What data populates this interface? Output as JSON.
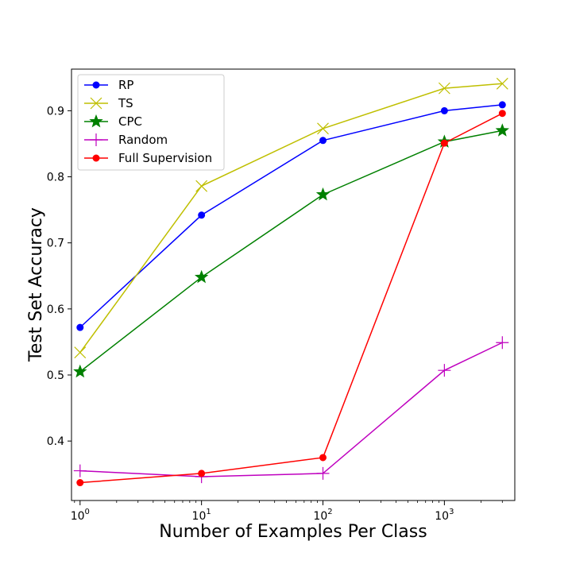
{
  "chart_data": {
    "type": "line",
    "title": "",
    "xlabel": "Number of Examples Per Class",
    "ylabel": "Test Set Accuracy",
    "xscale": "log",
    "xlim": [
      0.85,
      3800
    ],
    "ylim": [
      0.31,
      0.963
    ],
    "grid": false,
    "legend_position": "top-left",
    "x": [
      1,
      10,
      100,
      1000,
      3000
    ],
    "x_ticks": [
      1,
      10,
      100,
      1000
    ],
    "x_tick_labels": [
      {
        "base": "10",
        "exp": "0"
      },
      {
        "base": "10",
        "exp": "1"
      },
      {
        "base": "10",
        "exp": "2"
      },
      {
        "base": "10",
        "exp": "3"
      }
    ],
    "y_ticks": [
      0.4,
      0.5,
      0.6,
      0.7,
      0.8,
      0.9
    ],
    "y_tick_labels": [
      "0.4",
      "0.5",
      "0.6",
      "0.7",
      "0.8",
      "0.9"
    ],
    "series": [
      {
        "name": "RP",
        "color": "#0000ff",
        "marker": "circle",
        "values": [
          0.572,
          0.742,
          0.855,
          0.9,
          0.909
        ]
      },
      {
        "name": "TS",
        "color": "#bfbf00",
        "marker": "x",
        "values": [
          0.534,
          0.786,
          0.873,
          0.934,
          0.941
        ]
      },
      {
        "name": "CPC",
        "color": "#008000",
        "marker": "star",
        "values": [
          0.505,
          0.648,
          0.773,
          0.853,
          0.87
        ]
      },
      {
        "name": "Random",
        "color": "#bf00bf",
        "marker": "plus",
        "values": [
          0.355,
          0.346,
          0.351,
          0.507,
          0.549
        ]
      },
      {
        "name": "Full Supervision",
        "color": "#ff0000",
        "marker": "circle",
        "values": [
          0.337,
          0.351,
          0.375,
          0.851,
          0.896
        ]
      }
    ]
  }
}
